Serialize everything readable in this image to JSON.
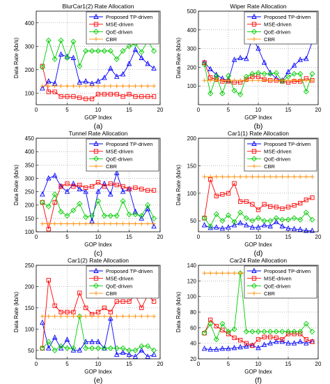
{
  "figure": {
    "series_styles": [
      {
        "name": "Proposed TP-driven",
        "color": "#0000ff",
        "marker": "triangle"
      },
      {
        "name": "MSE-driven",
        "color": "#ff0000",
        "marker": "square"
      },
      {
        "name": "QoE-driven",
        "color": "#00cc00",
        "marker": "diamond"
      },
      {
        "name": "CBR",
        "color": "#ff8c00",
        "marker": "plus"
      }
    ]
  },
  "chart_data": [
    {
      "type": "line",
      "title": "BlurCar1(2) Rate Allocation",
      "panel_label": "(a)",
      "xlabel": "GOP Index",
      "ylabel": "Data Rate (kb/s)",
      "xlim": [
        0,
        20
      ],
      "ylim": [
        50,
        450
      ],
      "xticks": [
        0,
        5,
        10,
        15,
        20
      ],
      "yticks": [
        100,
        200,
        300,
        400
      ],
      "grid": true,
      "legend": "top-right",
      "x": [
        1,
        2,
        3,
        4,
        5,
        6,
        7,
        8,
        9,
        10,
        11,
        12,
        13,
        14,
        15,
        16,
        17,
        18,
        19
      ],
      "series": [
        {
          "name": "Proposed TP-driven",
          "values": [
            120,
            150,
            140,
            265,
            255,
            250,
            145,
            150,
            140,
            150,
            165,
            205,
            170,
            180,
            225,
            285,
            250,
            225,
            205
          ]
        },
        {
          "name": "MSE-driven",
          "values": [
            215,
            105,
            105,
            85,
            85,
            85,
            80,
            75,
            75,
            95,
            95,
            95,
            95,
            85,
            95,
            85,
            85,
            85,
            85
          ]
        },
        {
          "name": "QoE-driven",
          "values": [
            210,
            325,
            245,
            325,
            250,
            320,
            215,
            280,
            280,
            280,
            280,
            280,
            245,
            280,
            300,
            310,
            275,
            325,
            280
          ]
        },
        {
          "name": "CBR",
          "values": [
            130,
            130,
            130,
            130,
            130,
            130,
            130,
            130,
            130,
            130,
            130,
            130,
            130,
            130,
            130,
            130,
            130,
            130,
            130
          ]
        }
      ]
    },
    {
      "type": "line",
      "title": "Wiper Rate Allocation",
      "panel_label": "(b)",
      "xlabel": "GOP Index",
      "ylabel": "Data Rate (kb/s)",
      "xlim": [
        0,
        20
      ],
      "ylim": [
        0,
        500
      ],
      "xticks": [
        0,
        5,
        10,
        15,
        20
      ],
      "yticks": [
        100,
        200,
        300,
        400,
        500
      ],
      "grid": true,
      "legend": "top-right",
      "x": [
        1,
        2,
        3,
        4,
        5,
        6,
        7,
        8,
        9,
        10,
        11,
        12,
        13,
        14,
        15,
        16,
        17,
        18,
        19
      ],
      "series": [
        {
          "name": "Proposed TP-driven",
          "values": [
            225,
            190,
            160,
            140,
            130,
            240,
            250,
            245,
            360,
            300,
            225,
            170,
            140,
            130,
            175,
            210,
            240,
            245,
            335
          ]
        },
        {
          "name": "MSE-driven",
          "values": [
            225,
            145,
            135,
            125,
            125,
            120,
            120,
            135,
            150,
            150,
            135,
            130,
            130,
            125,
            120,
            125,
            125,
            140,
            130
          ]
        },
        {
          "name": "QoE-driven",
          "values": [
            215,
            60,
            155,
            60,
            155,
            75,
            55,
            150,
            165,
            170,
            165,
            165,
            170,
            125,
            150,
            165,
            165,
            70,
            165
          ]
        },
        {
          "name": "CBR",
          "values": [
            130,
            130,
            130,
            130,
            130,
            130,
            130,
            130,
            130,
            130,
            130,
            130,
            130,
            130,
            130,
            130,
            130,
            130,
            130
          ]
        }
      ]
    },
    {
      "type": "line",
      "title": "Tunnel Rate Allocation",
      "panel_label": "(c)",
      "xlabel": "GOP Index",
      "ylabel": "Data Rate (kb/s)",
      "xlim": [
        0,
        20
      ],
      "ylim": [
        100,
        450
      ],
      "xticks": [
        0,
        5,
        10,
        15,
        20
      ],
      "yticks": [
        100,
        150,
        200,
        250,
        300,
        350,
        400,
        450
      ],
      "grid": true,
      "legend": "top-right",
      "x": [
        1,
        2,
        3,
        4,
        5,
        6,
        7,
        8,
        9,
        10,
        11,
        12,
        13,
        14,
        15,
        16,
        17,
        18,
        19
      ],
      "series": [
        {
          "name": "Proposed TP-driven",
          "values": [
            240,
            300,
            310,
            270,
            250,
            280,
            260,
            250,
            140,
            250,
            280,
            240,
            320,
            250,
            260,
            175,
            150,
            185,
            120
          ]
        },
        {
          "name": "MSE-driven",
          "values": [
            210,
            110,
            210,
            270,
            280,
            270,
            275,
            265,
            270,
            285,
            270,
            280,
            275,
            270,
            260,
            265,
            260,
            255,
            255
          ]
        },
        {
          "name": "QoE-driven",
          "values": [
            210,
            195,
            240,
            175,
            160,
            180,
            205,
            155,
            160,
            215,
            160,
            160,
            160,
            215,
            165,
            165,
            160,
            200,
            150
          ]
        },
        {
          "name": "CBR",
          "values": [
            130,
            130,
            130,
            130,
            130,
            130,
            130,
            130,
            130,
            130,
            130,
            130,
            130,
            130,
            130,
            130,
            130,
            130,
            130
          ]
        }
      ]
    },
    {
      "type": "line",
      "title": "Car1(1) Rate Allocation",
      "panel_label": "(d)",
      "xlabel": "GOP Index",
      "ylabel": "Data Rate (kb/s)",
      "xlim": [
        0,
        20
      ],
      "ylim": [
        30,
        200
      ],
      "xticks": [
        0,
        5,
        10,
        15,
        20
      ],
      "yticks": [
        50,
        100,
        150,
        200
      ],
      "grid": true,
      "legend": "top-right",
      "x": [
        1,
        2,
        3,
        4,
        5,
        6,
        7,
        8,
        9,
        10,
        11,
        12,
        13,
        14,
        15,
        16,
        17,
        18,
        19
      ],
      "series": [
        {
          "name": "Proposed TP-driven",
          "values": [
            42,
            37,
            38,
            36,
            38,
            42,
            46,
            42,
            38,
            38,
            42,
            40,
            48,
            40,
            36,
            35,
            34,
            32,
            32
          ]
        },
        {
          "name": "MSE-driven",
          "values": [
            55,
            125,
            95,
            98,
            100,
            118,
            85,
            85,
            80,
            70,
            80,
            76,
            75,
            72,
            75,
            78,
            82,
            88,
            92
          ]
        },
        {
          "name": "QoE-driven",
          "values": [
            55,
            40,
            62,
            50,
            60,
            48,
            65,
            55,
            50,
            55,
            50,
            50,
            55,
            52,
            52,
            55,
            52,
            65,
            52
          ]
        },
        {
          "name": "CBR",
          "values": [
            130,
            130,
            130,
            130,
            130,
            130,
            130,
            130,
            130,
            130,
            130,
            130,
            130,
            130,
            130,
            130,
            130,
            130,
            130
          ]
        }
      ]
    },
    {
      "type": "line",
      "title": "Car1(2) Rate Allocation",
      "panel_label": "(e)",
      "xlabel": "GOP Index",
      "ylabel": "Data Rate (kb/s)",
      "xlim": [
        0,
        20
      ],
      "ylim": [
        30,
        250
      ],
      "xticks": [
        0,
        5,
        10,
        15,
        20
      ],
      "yticks": [
        50,
        100,
        150,
        200,
        250
      ],
      "grid": true,
      "legend": "top-right",
      "x": [
        1,
        2,
        3,
        4,
        5,
        6,
        7,
        8,
        9,
        10,
        11,
        12,
        13,
        14,
        15,
        16,
        17,
        18,
        19
      ],
      "series": [
        {
          "name": "Proposed TP-driven",
          "values": [
            115,
            55,
            80,
            55,
            75,
            50,
            50,
            70,
            70,
            70,
            55,
            125,
            40,
            45,
            40,
            35,
            50,
            35,
            40
          ]
        },
        {
          "name": "MSE-driven",
          "values": [
            55,
            215,
            155,
            140,
            140,
            140,
            185,
            150,
            135,
            140,
            150,
            140,
            165,
            165,
            165,
            180,
            150,
            180,
            165
          ]
        },
        {
          "name": "QoE-driven",
          "values": [
            55,
            70,
            50,
            60,
            55,
            55,
            130,
            55,
            55,
            55,
            55,
            55,
            55,
            55,
            50,
            50,
            60,
            60,
            50
          ]
        },
        {
          "name": "CBR",
          "values": [
            130,
            130,
            130,
            130,
            130,
            130,
            130,
            130,
            130,
            130,
            130,
            130,
            130,
            130,
            130,
            130,
            130,
            130,
            130
          ]
        }
      ]
    },
    {
      "type": "line",
      "title": "Car24 Rate Allocation",
      "panel_label": "(f)",
      "xlabel": "GOP Index",
      "ylabel": "Data Rate (kb/s)",
      "xlim": [
        0,
        20
      ],
      "ylim": [
        20,
        140
      ],
      "xticks": [
        0,
        5,
        10,
        15,
        20
      ],
      "yticks": [
        20,
        40,
        60,
        80,
        100,
        120,
        140
      ],
      "grid": true,
      "legend": "top-right",
      "x": [
        1,
        2,
        3,
        4,
        5,
        6,
        7,
        8,
        9,
        10,
        11,
        12,
        13,
        14,
        15,
        16,
        17,
        18,
        19
      ],
      "series": [
        {
          "name": "Proposed TP-driven",
          "values": [
            33,
            32,
            32,
            33,
            33,
            34,
            35,
            36,
            37,
            34,
            38,
            40,
            42,
            42,
            40,
            40,
            42,
            40,
            42
          ]
        },
        {
          "name": "MSE-driven",
          "values": [
            53,
            70,
            62,
            57,
            52,
            47,
            44,
            40,
            37,
            45,
            48,
            48,
            47,
            45,
            52,
            52,
            52,
            45,
            42
          ]
        },
        {
          "name": "QoE-driven",
          "values": [
            53,
            65,
            45,
            65,
            55,
            58,
            130,
            55,
            55,
            55,
            55,
            55,
            55,
            55,
            55,
            55,
            55,
            65,
            55
          ]
        },
        {
          "name": "CBR",
          "values": [
            130,
            130,
            130,
            130,
            130,
            130,
            130,
            130,
            130,
            130,
            130,
            130,
            130,
            130,
            130,
            130,
            130,
            130,
            130
          ]
        }
      ]
    }
  ]
}
